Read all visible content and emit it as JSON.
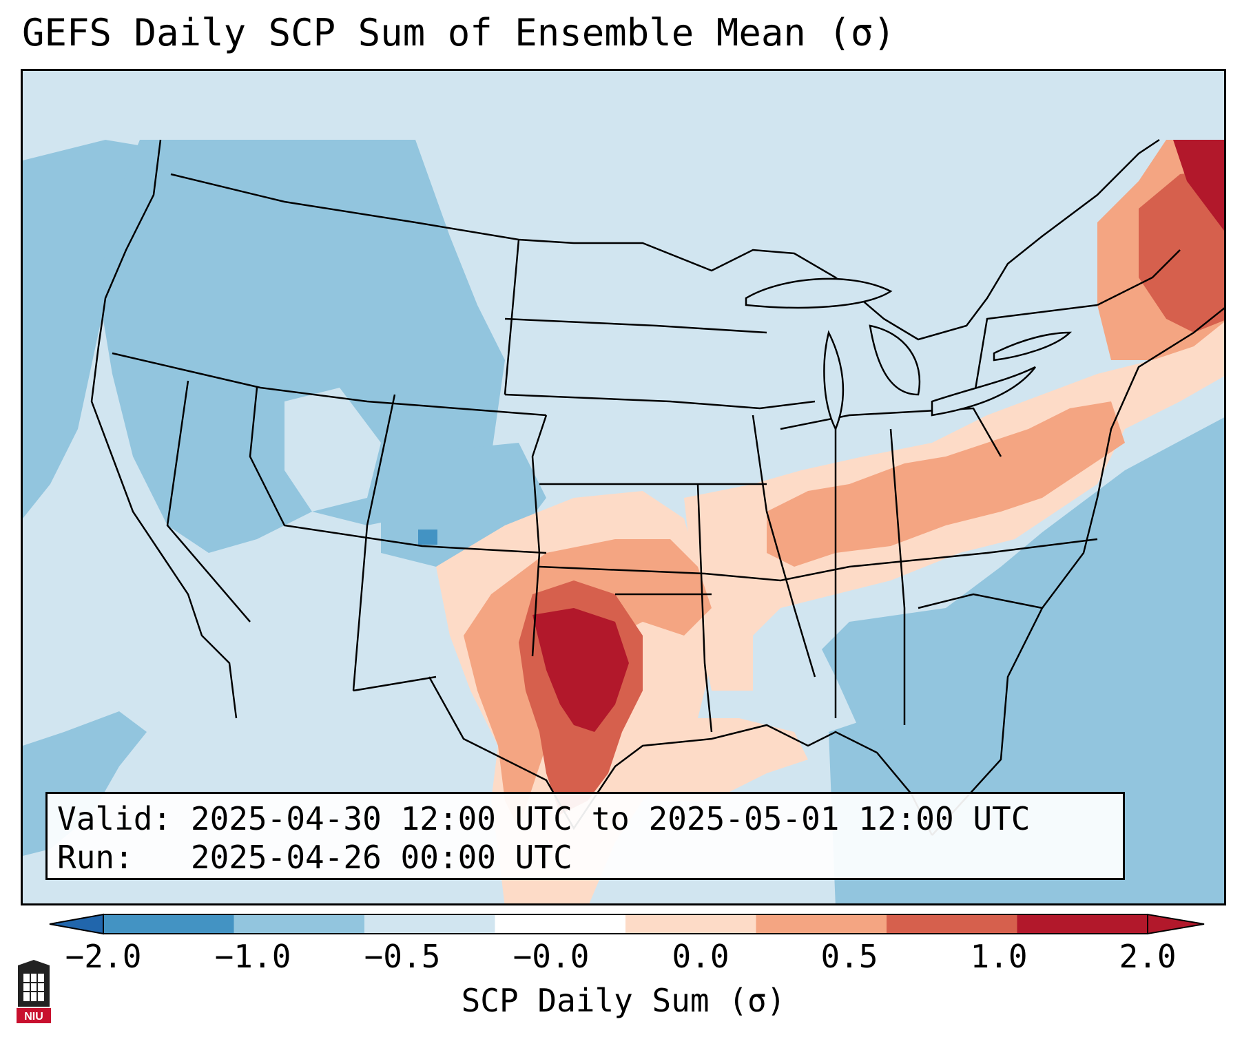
{
  "title": "GEFS Daily SCP Sum of Ensemble Mean (σ)",
  "info": {
    "valid_label": "Valid:",
    "valid_text": "2025-04-30 12:00 UTC to 2025-05-01 12:00 UTC",
    "run_label": "Run:",
    "run_text": "2025-04-26 00:00 UTC"
  },
  "colorbar": {
    "label": "SCP Daily Sum (σ)",
    "ticks": [
      "−2.0",
      "−1.0",
      "−0.5",
      "−0.0",
      "0.0",
      "0.5",
      "1.0",
      "2.0"
    ],
    "colors": [
      "#4393c3",
      "#92c5de",
      "#d1e5f0",
      "#ffffff",
      "#fddbc7",
      "#f4a582",
      "#d6604d",
      "#b2182b"
    ],
    "extend": "both"
  },
  "logo": {
    "text": "NIU",
    "icon": "university-seal-icon"
  },
  "regions": [
    {
      "name": "pacific-northwest",
      "level": "-1.0"
    },
    {
      "name": "great-basin",
      "level": "-1.0"
    },
    {
      "name": "central-rockies",
      "level": "-1.0"
    },
    {
      "name": "southern-plains",
      "level": "2.0"
    },
    {
      "name": "ohio-valley",
      "level": "0.5"
    },
    {
      "name": "new-england",
      "level": "1.0"
    },
    {
      "name": "atlantic-ocean",
      "level": "-1.0"
    }
  ]
}
